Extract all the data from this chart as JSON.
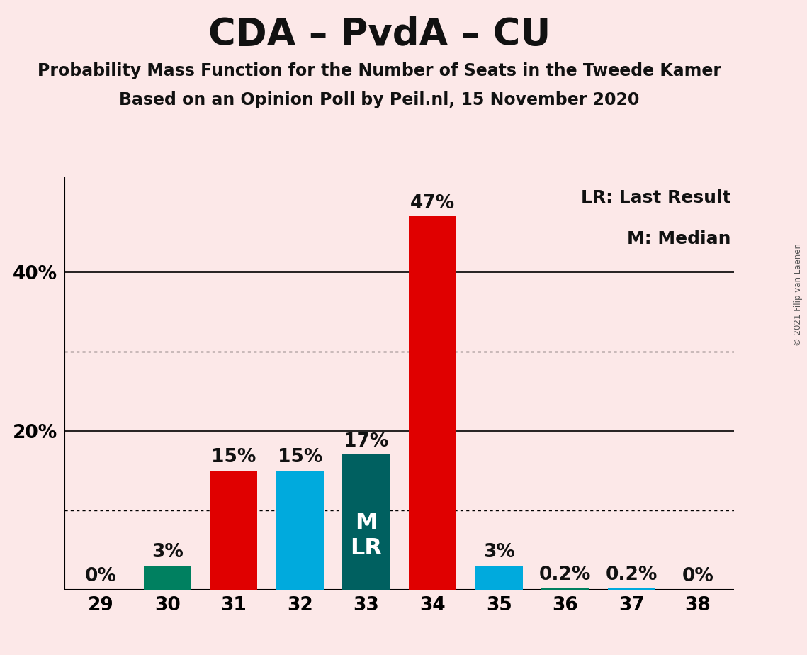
{
  "title": "CDA – PvdA – CU",
  "subtitle1": "Probability Mass Function for the Number of Seats in the Tweede Kamer",
  "subtitle2": "Based on an Opinion Poll by Peil.nl, 15 November 2020",
  "copyright": "© 2021 Filip van Laenen",
  "legend_lr": "LR: Last Result",
  "legend_m": "M: Median",
  "seats": [
    29,
    30,
    31,
    32,
    33,
    34,
    35,
    36,
    37,
    38
  ],
  "values": [
    0.0,
    3.0,
    15.0,
    15.0,
    17.0,
    47.0,
    3.0,
    0.2,
    0.2,
    0.0
  ],
  "labels": [
    "0%",
    "3%",
    "15%",
    "15%",
    "17%",
    "47%",
    "3%",
    "0.2%",
    "0.2%",
    "0%"
  ],
  "colors": [
    "#008060",
    "#008060",
    "#e00000",
    "#00aadd",
    "#006060",
    "#e00000",
    "#00aadd",
    "#008060",
    "#00aadd",
    "#00aadd"
  ],
  "median_seat": 33,
  "last_result_seat": 33,
  "background_color": "#fce8e8",
  "ylim": [
    0,
    52
  ],
  "solid_gridlines": [
    20,
    40
  ],
  "dotted_gridlines": [
    10,
    30
  ],
  "title_fontsize": 38,
  "subtitle_fontsize": 17,
  "label_fontsize": 19,
  "tick_fontsize": 19,
  "legend_fontsize": 18,
  "bar_width": 0.72
}
